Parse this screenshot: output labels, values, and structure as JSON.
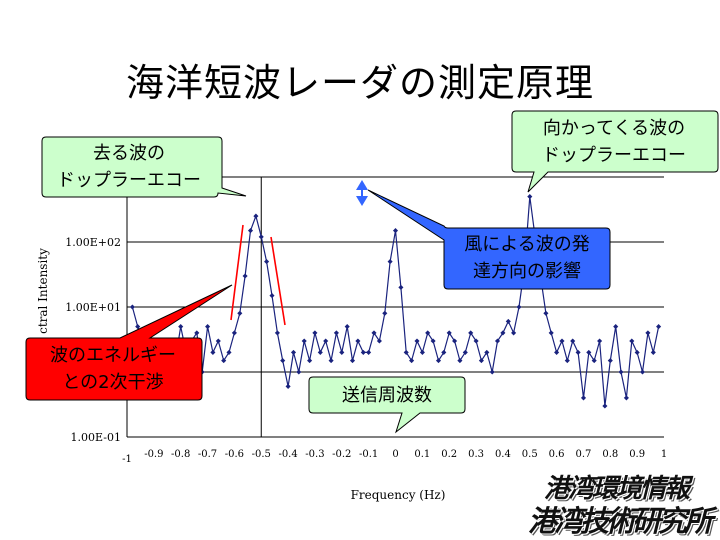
{
  "slide": {
    "title": "海洋短波レーダの測定原理"
  },
  "callouts": {
    "receding": {
      "lines": [
        "去る波の",
        "ドップラーエコー"
      ],
      "fill": "#ccffcc"
    },
    "approaching": {
      "lines": [
        "向かってくる波の",
        "ドップラーエコー"
      ],
      "fill": "#ccffcc"
    },
    "wind": {
      "lines": [
        "風による波の発",
        "達方向の影響"
      ],
      "fill": "#3366ff"
    },
    "second_order": {
      "lines": [
        "波のエネルギー",
        "との2次干渉"
      ],
      "fill": "#ff0000"
    },
    "transmit": {
      "lines": [
        "送信周波数"
      ],
      "fill": "#ccffcc"
    }
  },
  "logo": {
    "line1": "港湾環境情報",
    "line2": "港湾技術研究所"
  },
  "chart_data": {
    "type": "line",
    "title": "",
    "xlabel": "Frequency (Hz)",
    "ylabel": "Spectral Intensity",
    "ylabel_visible": "ctral Intensity",
    "y_scale": "log",
    "xlim": [
      -1,
      1
    ],
    "ylim": [
      0.1,
      1000
    ],
    "x_ticks": [
      "-1",
      "-0.9",
      "-0.8",
      "-0.7",
      "-0.6",
      "-0.5",
      "-0.4",
      "-0.3",
      "-0.2",
      "-0.1",
      "0",
      "0.1",
      "0.2",
      "0.3",
      "0.4",
      "0.5",
      "0.6",
      "0.7",
      "0.8",
      "0.9",
      "1"
    ],
    "y_ticks": [
      "1.00E-01",
      "1.00E+01",
      "1.00E+02"
    ],
    "grid": true,
    "series_color": "#1a237e",
    "series": [
      {
        "x": [
          -0.98,
          -0.96,
          -0.94,
          -0.92,
          -0.9,
          -0.88,
          -0.86,
          -0.84,
          -0.82,
          -0.8,
          -0.78,
          -0.76,
          -0.74,
          -0.72,
          -0.7,
          -0.68,
          -0.66,
          -0.64,
          -0.62,
          -0.6,
          -0.58,
          -0.56,
          -0.54,
          -0.52,
          -0.5,
          -0.48,
          -0.46,
          -0.44,
          -0.42,
          -0.4,
          -0.38,
          -0.36,
          -0.34,
          -0.32,
          -0.3,
          -0.28,
          -0.26,
          -0.24,
          -0.22,
          -0.2,
          -0.18,
          -0.16,
          -0.14,
          -0.12,
          -0.1,
          -0.08,
          -0.06,
          -0.04,
          -0.02,
          0,
          0.02,
          0.04,
          0.06,
          0.08,
          0.1,
          0.12,
          0.14,
          0.16,
          0.18,
          0.2,
          0.22,
          0.24,
          0.26,
          0.28,
          0.3,
          0.32,
          0.34,
          0.36,
          0.38,
          0.4,
          0.42,
          0.44,
          0.46,
          0.48,
          0.5,
          0.52,
          0.54,
          0.56,
          0.58,
          0.6,
          0.62,
          0.64,
          0.66,
          0.68,
          0.7,
          0.72,
          0.74,
          0.76,
          0.78,
          0.8,
          0.82,
          0.84,
          0.86,
          0.88,
          0.9,
          0.92,
          0.94,
          0.96,
          0.98
        ],
        "y": [
          10,
          5,
          3,
          2,
          1.5,
          1,
          3,
          2,
          1.5,
          5,
          2,
          3,
          4,
          1,
          5,
          2,
          3,
          1.5,
          2,
          4,
          8,
          30,
          150,
          250,
          120,
          50,
          15,
          4,
          1.5,
          0.6,
          2,
          1,
          3,
          1.5,
          4,
          2,
          3,
          1.5,
          4,
          2,
          5,
          1.5,
          3,
          2,
          2,
          4,
          3,
          8,
          50,
          150,
          20,
          2,
          1.5,
          3,
          2,
          4,
          3,
          1.5,
          2,
          4,
          3,
          1.5,
          2,
          4,
          3,
          1.5,
          2,
          1,
          3,
          4,
          6,
          4,
          10,
          40,
          500,
          120,
          30,
          8,
          4,
          2,
          3,
          1.5,
          3,
          2,
          0.4,
          2,
          1.5,
          3,
          0.3,
          1.5,
          5,
          1,
          0.4,
          3,
          2,
          1,
          4,
          2,
          5
        ]
      }
    ]
  }
}
